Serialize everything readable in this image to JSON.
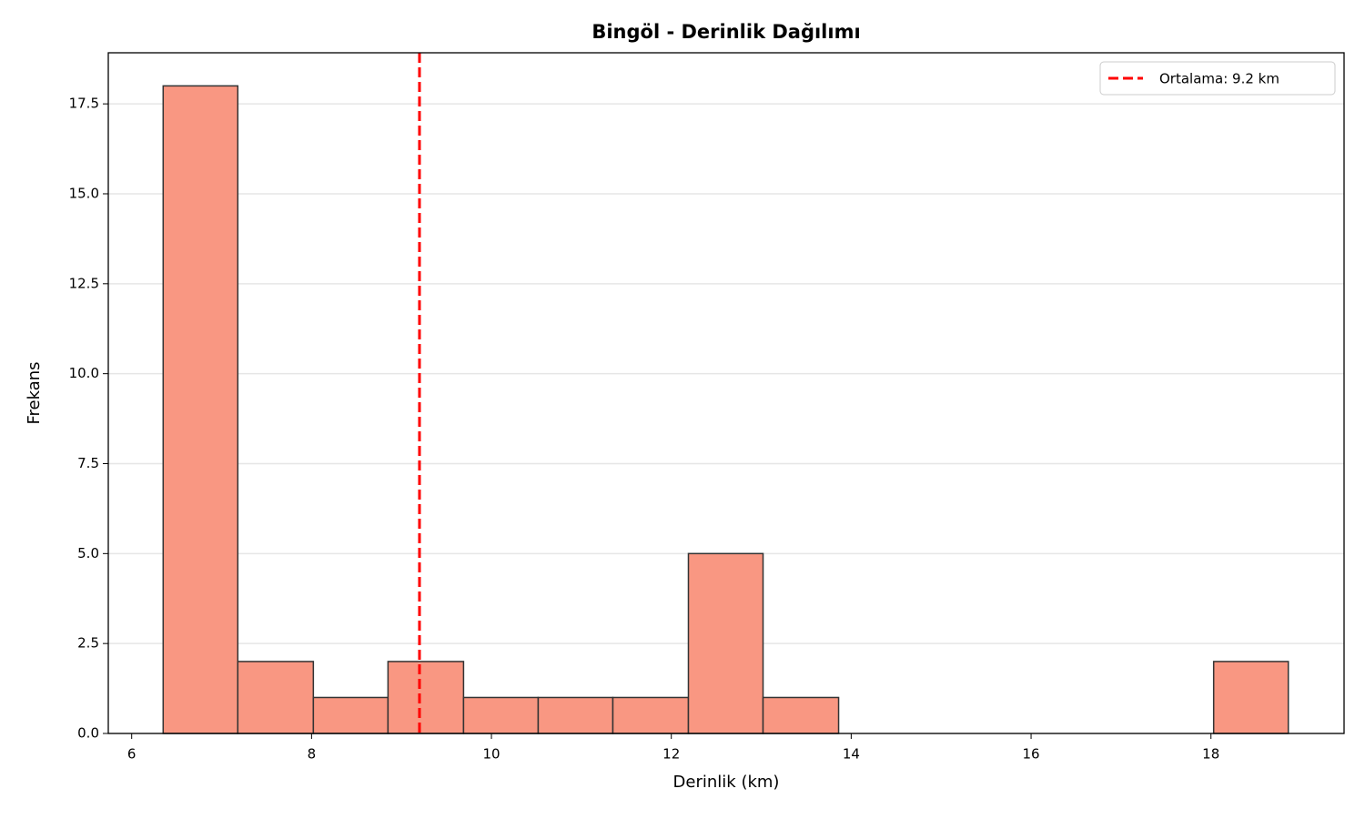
{
  "chart_data": {
    "type": "histogram",
    "title": "Bingöl - Derinlik Dağılımı",
    "xlabel": "Derinlik (km)",
    "ylabel": "Frekans",
    "bins": [
      6.35,
      7.18,
      8.02,
      8.85,
      9.69,
      10.52,
      11.35,
      12.19,
      13.02,
      13.86,
      14.69,
      15.52,
      16.36,
      17.19,
      18.03,
      18.86
    ],
    "counts": [
      18,
      2,
      1,
      2,
      1,
      1,
      1,
      5,
      1,
      0,
      0,
      0,
      0,
      0,
      2
    ],
    "color": "#f99782",
    "edgecolor": "#333333",
    "mean_line": {
      "value": 9.2,
      "label": "Ortalama: 9.2 km",
      "color": "#ff0000"
    },
    "xlim": [
      5.74,
      19.48
    ],
    "xticks": [
      6,
      8,
      10,
      12,
      14,
      16,
      18
    ],
    "ylim": [
      0,
      18.92
    ],
    "yticks": [
      {
        "value": 0,
        "label": "0.0"
      },
      2.5,
      {
        "value": 5,
        "label": "5.0"
      },
      7.5,
      {
        "value": 10,
        "label": "10.0"
      },
      12.5,
      {
        "value": 15,
        "label": "15.0"
      },
      17.5
    ],
    "grid": true,
    "legend_loc": "upper right"
  }
}
